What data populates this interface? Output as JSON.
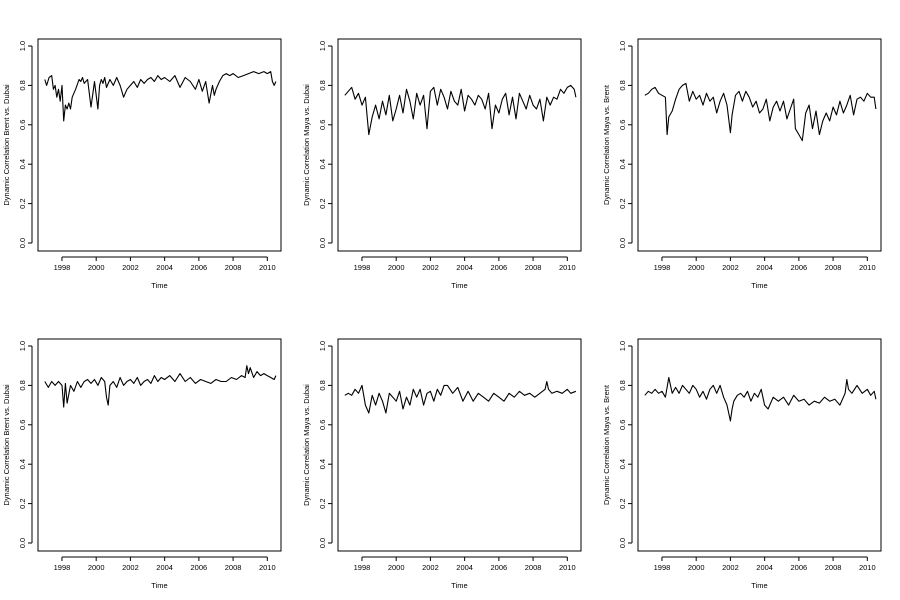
{
  "chart_data": [
    {
      "type": "line",
      "xlabel": "Time",
      "ylabel": "Dynamic Correlation Brent vs. Dubai",
      "xlim": [
        1996.6,
        2010.8
      ],
      "ylim": [
        0.0,
        1.0
      ],
      "xticks": [
        "1998",
        "2000",
        "2002",
        "2004",
        "2006",
        "2008",
        "2010"
      ],
      "yticks": [
        "0.0",
        "0.2",
        "0.4",
        "0.6",
        "0.8",
        "1.0"
      ],
      "series": [
        {
          "x": [
            1997.0,
            1997.1,
            1997.25,
            1997.4,
            1997.5,
            1997.6,
            1997.7,
            1997.8,
            1997.9,
            1998.0,
            1998.1,
            1998.2,
            1998.3,
            1998.4,
            1998.5,
            1998.6,
            1998.8,
            1999.0,
            1999.1,
            1999.2,
            1999.3,
            1999.5,
            1999.7,
            1999.9,
            2000.1,
            2000.2,
            2000.3,
            2000.4,
            2000.5,
            2000.6,
            2000.8,
            2001.0,
            2001.2,
            2001.4,
            2001.6,
            2001.8,
            2002.0,
            2002.2,
            2002.4,
            2002.6,
            2002.8,
            2003.0,
            2003.2,
            2003.4,
            2003.6,
            2003.8,
            2004.0,
            2004.3,
            2004.6,
            2004.9,
            2005.2,
            2005.5,
            2005.8,
            2006.0,
            2006.2,
            2006.4,
            2006.6,
            2006.8,
            2006.9,
            2007.0,
            2007.2,
            2007.4,
            2007.6,
            2007.8,
            2008.0,
            2008.3,
            2008.6,
            2008.9,
            2009.2,
            2009.5,
            2009.8,
            2010.0,
            2010.2,
            2010.3,
            2010.4,
            2010.5
          ],
          "y": [
            0.83,
            0.8,
            0.84,
            0.85,
            0.78,
            0.8,
            0.74,
            0.78,
            0.72,
            0.8,
            0.62,
            0.7,
            0.68,
            0.71,
            0.68,
            0.74,
            0.78,
            0.83,
            0.82,
            0.84,
            0.81,
            0.83,
            0.69,
            0.82,
            0.68,
            0.8,
            0.83,
            0.81,
            0.84,
            0.79,
            0.83,
            0.8,
            0.84,
            0.8,
            0.74,
            0.78,
            0.8,
            0.82,
            0.79,
            0.83,
            0.81,
            0.83,
            0.84,
            0.82,
            0.85,
            0.83,
            0.84,
            0.82,
            0.85,
            0.79,
            0.84,
            0.82,
            0.78,
            0.83,
            0.77,
            0.82,
            0.71,
            0.8,
            0.75,
            0.78,
            0.82,
            0.85,
            0.86,
            0.85,
            0.86,
            0.84,
            0.85,
            0.86,
            0.87,
            0.86,
            0.87,
            0.86,
            0.87,
            0.82,
            0.8,
            0.82
          ]
        }
      ]
    },
    {
      "type": "line",
      "xlabel": "Time",
      "ylabel": "Dynamic Correlation Maya vs. Dubai",
      "xlim": [
        1996.6,
        2010.8
      ],
      "ylim": [
        0.0,
        1.0
      ],
      "xticks": [
        "1998",
        "2000",
        "2002",
        "2004",
        "2006",
        "2008",
        "2010"
      ],
      "yticks": [
        "0.0",
        "0.2",
        "0.4",
        "0.6",
        "0.8",
        "1.0"
      ],
      "series": [
        {
          "x": [
            1997.0,
            1997.2,
            1997.4,
            1997.6,
            1997.8,
            1998.0,
            1998.2,
            1998.4,
            1998.6,
            1998.8,
            1999.0,
            1999.2,
            1999.4,
            1999.6,
            1999.8,
            2000.0,
            2000.2,
            2000.4,
            2000.6,
            2000.8,
            2001.0,
            2001.2,
            2001.4,
            2001.6,
            2001.8,
            2002.0,
            2002.2,
            2002.4,
            2002.6,
            2002.8,
            2003.0,
            2003.2,
            2003.4,
            2003.6,
            2003.8,
            2004.0,
            2004.2,
            2004.4,
            2004.6,
            2004.8,
            2005.0,
            2005.2,
            2005.4,
            2005.6,
            2005.8,
            2006.0,
            2006.2,
            2006.4,
            2006.6,
            2006.8,
            2007.0,
            2007.2,
            2007.4,
            2007.6,
            2007.8,
            2008.0,
            2008.2,
            2008.4,
            2008.6,
            2008.8,
            2009.0,
            2009.2,
            2009.4,
            2009.6,
            2009.8,
            2010.0,
            2010.2,
            2010.4,
            2010.5
          ],
          "y": [
            0.75,
            0.77,
            0.79,
            0.73,
            0.76,
            0.7,
            0.74,
            0.55,
            0.64,
            0.7,
            0.63,
            0.72,
            0.65,
            0.75,
            0.62,
            0.68,
            0.75,
            0.66,
            0.78,
            0.72,
            0.63,
            0.76,
            0.7,
            0.75,
            0.58,
            0.77,
            0.79,
            0.7,
            0.78,
            0.74,
            0.68,
            0.77,
            0.72,
            0.7,
            0.78,
            0.67,
            0.75,
            0.73,
            0.7,
            0.75,
            0.73,
            0.68,
            0.76,
            0.58,
            0.7,
            0.66,
            0.73,
            0.76,
            0.65,
            0.74,
            0.63,
            0.76,
            0.72,
            0.68,
            0.75,
            0.7,
            0.68,
            0.73,
            0.62,
            0.74,
            0.7,
            0.74,
            0.73,
            0.78,
            0.76,
            0.79,
            0.8,
            0.78,
            0.74
          ]
        }
      ]
    },
    {
      "type": "line",
      "xlabel": "Time",
      "ylabel": "Dynamic Correlation Maya vs. Brent",
      "xlim": [
        1996.6,
        2010.8
      ],
      "ylim": [
        0.0,
        1.0
      ],
      "xticks": [
        "1998",
        "2000",
        "2002",
        "2004",
        "2006",
        "2008",
        "2010"
      ],
      "yticks": [
        "0.0",
        "0.2",
        "0.4",
        "0.6",
        "0.8",
        "1.0"
      ],
      "series": [
        {
          "x": [
            1997.0,
            1997.2,
            1997.4,
            1997.6,
            1997.8,
            1998.0,
            1998.2,
            1998.3,
            1998.4,
            1998.6,
            1998.8,
            1999.0,
            1999.2,
            1999.4,
            1999.6,
            1999.8,
            2000.0,
            2000.2,
            2000.4,
            2000.6,
            2000.8,
            2001.0,
            2001.2,
            2001.4,
            2001.6,
            2001.8,
            2002.0,
            2002.1,
            2002.3,
            2002.5,
            2002.7,
            2002.9,
            2003.1,
            2003.3,
            2003.5,
            2003.7,
            2003.9,
            2004.1,
            2004.3,
            2004.5,
            2004.7,
            2004.9,
            2005.1,
            2005.3,
            2005.5,
            2005.7,
            2005.8,
            2006.0,
            2006.2,
            2006.4,
            2006.6,
            2006.8,
            2007.0,
            2007.2,
            2007.4,
            2007.6,
            2007.8,
            2008.0,
            2008.2,
            2008.4,
            2008.6,
            2008.8,
            2009.0,
            2009.2,
            2009.4,
            2009.6,
            2009.8,
            2010.0,
            2010.2,
            2010.4,
            2010.5
          ],
          "y": [
            0.75,
            0.76,
            0.78,
            0.79,
            0.76,
            0.75,
            0.74,
            0.55,
            0.64,
            0.67,
            0.73,
            0.78,
            0.8,
            0.81,
            0.72,
            0.77,
            0.73,
            0.75,
            0.7,
            0.76,
            0.72,
            0.74,
            0.66,
            0.72,
            0.76,
            0.7,
            0.56,
            0.65,
            0.75,
            0.77,
            0.72,
            0.77,
            0.74,
            0.69,
            0.72,
            0.66,
            0.68,
            0.73,
            0.62,
            0.69,
            0.72,
            0.67,
            0.72,
            0.63,
            0.68,
            0.73,
            0.58,
            0.55,
            0.52,
            0.66,
            0.7,
            0.58,
            0.67,
            0.55,
            0.62,
            0.66,
            0.62,
            0.69,
            0.65,
            0.72,
            0.66,
            0.7,
            0.75,
            0.65,
            0.73,
            0.74,
            0.72,
            0.76,
            0.74,
            0.74,
            0.68
          ]
        }
      ]
    },
    {
      "type": "line",
      "xlabel": "Time",
      "ylabel": "Dynamic Correlation Brent vs. Dubai",
      "xlim": [
        1996.6,
        2010.8
      ],
      "ylim": [
        0.0,
        1.0
      ],
      "xticks": [
        "1998",
        "2000",
        "2002",
        "2004",
        "2006",
        "2008",
        "2010"
      ],
      "yticks": [
        "0.0",
        "0.2",
        "0.4",
        "0.6",
        "0.8",
        "1.0"
      ],
      "series": [
        {
          "x": [
            1997.0,
            1997.2,
            1997.4,
            1997.6,
            1997.8,
            1998.0,
            1998.1,
            1998.2,
            1998.3,
            1998.5,
            1998.7,
            1998.9,
            1999.1,
            1999.3,
            1999.5,
            1999.7,
            1999.9,
            2000.1,
            2000.3,
            2000.5,
            2000.6,
            2000.7,
            2000.8,
            2001.0,
            2001.2,
            2001.4,
            2001.6,
            2001.8,
            2002.0,
            2002.2,
            2002.4,
            2002.6,
            2002.8,
            2003.0,
            2003.2,
            2003.4,
            2003.6,
            2003.8,
            2004.0,
            2004.3,
            2004.6,
            2004.9,
            2005.2,
            2005.5,
            2005.8,
            2006.1,
            2006.4,
            2006.7,
            2007.0,
            2007.3,
            2007.6,
            2007.9,
            2008.2,
            2008.5,
            2008.7,
            2008.8,
            2008.9,
            2009.0,
            2009.2,
            2009.4,
            2009.6,
            2009.8,
            2010.0,
            2010.2,
            2010.4,
            2010.5
          ],
          "y": [
            0.82,
            0.79,
            0.82,
            0.8,
            0.82,
            0.8,
            0.69,
            0.81,
            0.71,
            0.8,
            0.77,
            0.82,
            0.79,
            0.82,
            0.83,
            0.81,
            0.83,
            0.8,
            0.84,
            0.82,
            0.74,
            0.7,
            0.8,
            0.82,
            0.79,
            0.84,
            0.8,
            0.82,
            0.83,
            0.81,
            0.84,
            0.8,
            0.82,
            0.83,
            0.81,
            0.85,
            0.82,
            0.84,
            0.83,
            0.85,
            0.82,
            0.86,
            0.82,
            0.84,
            0.81,
            0.83,
            0.82,
            0.81,
            0.83,
            0.82,
            0.82,
            0.84,
            0.83,
            0.85,
            0.84,
            0.9,
            0.86,
            0.89,
            0.84,
            0.87,
            0.85,
            0.86,
            0.85,
            0.84,
            0.83,
            0.85
          ]
        }
      ]
    },
    {
      "type": "line",
      "xlabel": "Time",
      "ylabel": "Dynamic Correlation Maya vs. Dubai",
      "xlim": [
        1996.6,
        2010.8
      ],
      "ylim": [
        0.0,
        1.0
      ],
      "xticks": [
        "1998",
        "2000",
        "2002",
        "2004",
        "2006",
        "2008",
        "2010"
      ],
      "yticks": [
        "0.0",
        "0.2",
        "0.4",
        "0.6",
        "0.8",
        "1.0"
      ],
      "series": [
        {
          "x": [
            1997.0,
            1997.2,
            1997.4,
            1997.6,
            1997.8,
            1998.0,
            1998.2,
            1998.4,
            1998.6,
            1998.8,
            1999.0,
            1999.2,
            1999.4,
            1999.6,
            1999.8,
            2000.0,
            2000.2,
            2000.4,
            2000.6,
            2000.8,
            2001.0,
            2001.2,
            2001.4,
            2001.6,
            2001.8,
            2002.0,
            2002.2,
            2002.4,
            2002.6,
            2002.8,
            2003.0,
            2003.3,
            2003.6,
            2003.9,
            2004.2,
            2004.5,
            2004.8,
            2005.1,
            2005.4,
            2005.7,
            2006.0,
            2006.3,
            2006.6,
            2006.9,
            2007.2,
            2007.5,
            2007.8,
            2008.1,
            2008.4,
            2008.7,
            2008.8,
            2008.9,
            2009.1,
            2009.4,
            2009.7,
            2010.0,
            2010.2,
            2010.5
          ],
          "y": [
            0.75,
            0.76,
            0.75,
            0.78,
            0.76,
            0.8,
            0.7,
            0.66,
            0.75,
            0.7,
            0.76,
            0.72,
            0.66,
            0.76,
            0.74,
            0.72,
            0.77,
            0.68,
            0.74,
            0.7,
            0.78,
            0.74,
            0.78,
            0.7,
            0.76,
            0.77,
            0.72,
            0.78,
            0.75,
            0.8,
            0.8,
            0.76,
            0.79,
            0.72,
            0.77,
            0.72,
            0.76,
            0.74,
            0.72,
            0.76,
            0.74,
            0.72,
            0.76,
            0.74,
            0.77,
            0.75,
            0.76,
            0.74,
            0.76,
            0.78,
            0.82,
            0.78,
            0.76,
            0.77,
            0.76,
            0.78,
            0.76,
            0.77
          ]
        }
      ]
    },
    {
      "type": "line",
      "xlabel": "Time",
      "ylabel": "Dynamic Correlation Maya vs. Brent",
      "xlim": [
        1996.6,
        2010.8
      ],
      "ylim": [
        0.0,
        1.0
      ],
      "xticks": [
        "1998",
        "2000",
        "2002",
        "2004",
        "2006",
        "2008",
        "2010"
      ],
      "yticks": [
        "0.0",
        "0.2",
        "0.4",
        "0.6",
        "0.8",
        "1.0"
      ],
      "series": [
        {
          "x": [
            1997.0,
            1997.2,
            1997.4,
            1997.6,
            1997.8,
            1998.0,
            1998.2,
            1998.4,
            1998.6,
            1998.8,
            1999.0,
            1999.2,
            1999.4,
            1999.6,
            1999.8,
            2000.0,
            2000.2,
            2000.4,
            2000.6,
            2000.8,
            2001.0,
            2001.2,
            2001.4,
            2001.6,
            2001.8,
            2002.0,
            2002.1,
            2002.2,
            2002.4,
            2002.6,
            2002.8,
            2003.0,
            2003.2,
            2003.4,
            2003.6,
            2003.8,
            2004.0,
            2004.2,
            2004.5,
            2004.8,
            2005.1,
            2005.4,
            2005.7,
            2006.0,
            2006.3,
            2006.6,
            2006.9,
            2007.2,
            2007.5,
            2007.8,
            2008.1,
            2008.4,
            2008.7,
            2008.8,
            2008.9,
            2009.1,
            2009.4,
            2009.7,
            2010.0,
            2010.2,
            2010.4,
            2010.5
          ],
          "y": [
            0.75,
            0.77,
            0.76,
            0.78,
            0.76,
            0.77,
            0.74,
            0.84,
            0.76,
            0.79,
            0.76,
            0.8,
            0.78,
            0.76,
            0.8,
            0.78,
            0.74,
            0.77,
            0.73,
            0.78,
            0.8,
            0.76,
            0.8,
            0.74,
            0.7,
            0.62,
            0.68,
            0.72,
            0.75,
            0.76,
            0.74,
            0.77,
            0.72,
            0.76,
            0.74,
            0.78,
            0.7,
            0.68,
            0.74,
            0.72,
            0.74,
            0.7,
            0.75,
            0.72,
            0.73,
            0.7,
            0.72,
            0.71,
            0.74,
            0.72,
            0.73,
            0.7,
            0.76,
            0.83,
            0.78,
            0.76,
            0.8,
            0.76,
            0.78,
            0.75,
            0.77,
            0.73
          ]
        }
      ]
    }
  ]
}
